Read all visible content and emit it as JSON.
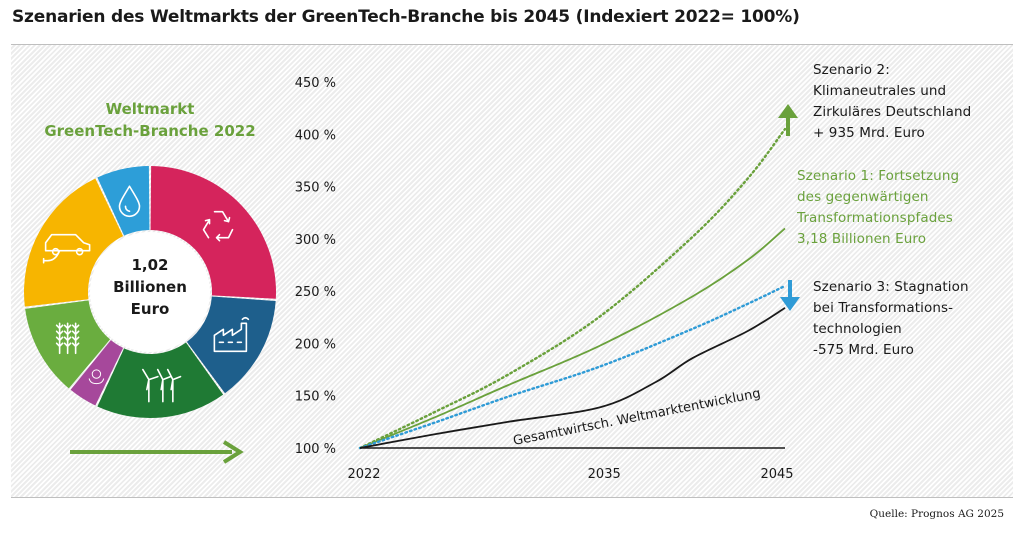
{
  "title": "Szenarien des Weltmarkts der GreenTech-Branche bis 2045 (Indexiert 2022= 100%)",
  "source": "Quelle: Prognos AG 2025",
  "colors": {
    "green": "#6aa13c",
    "blue": "#2f9bd6",
    "black": "#1a1a1a"
  },
  "donut": {
    "title_lines": [
      "Weltmarkt",
      "GreenTech-Branche 2022"
    ],
    "center_lines": [
      "1,02",
      "Billionen",
      "Euro"
    ],
    "segments": [
      {
        "icon": "recycling-icon",
        "value": 0.26,
        "color": "#d5245c"
      },
      {
        "icon": "factory-icon",
        "value": 0.14,
        "color": "#1e5f8c"
      },
      {
        "icon": "wind-turbine-icon",
        "value": 0.17,
        "color": "#1f7a34"
      },
      {
        "icon": "globe-hands-icon",
        "value": 0.04,
        "color": "#a6489b"
      },
      {
        "icon": "wheat-icon",
        "value": 0.12,
        "color": "#6aad3f"
      },
      {
        "icon": "electric-car-icon",
        "value": 0.2,
        "color": "#f7b500"
      },
      {
        "icon": "water-drop-icon",
        "value": 0.07,
        "color": "#2d9ed8"
      }
    ]
  },
  "scenarios": {
    "s2": [
      "Szenario 2:",
      "Klimaneutrales und",
      "Zirkuläres Deutschland",
      "+ 935 Mrd. Euro"
    ],
    "s1": [
      "Szenario 1: Fortsetzung",
      "des gegenwärtigen",
      "Transformationspfades",
      "3,18 Billionen Euro"
    ],
    "s3": [
      "Szenario 3: Stagnation",
      "bei Transformations-",
      "technologien",
      "-575 Mrd. Euro"
    ]
  },
  "chart_data": {
    "type": "line",
    "x_ticks": [
      "2022",
      "2035",
      "2045"
    ],
    "y_ticks": [
      "100 %",
      "150 %",
      "200 %",
      "250 %",
      "300 %",
      "350 %",
      "400 %",
      "450 %"
    ],
    "ylim": [
      100,
      450
    ],
    "xlim": [
      2022,
      2045
    ],
    "curve_label": "Gesamtwirtsch. Weltmarktentwicklung",
    "series": [
      {
        "key": "s2",
        "style": "dotted",
        "color": "#6aa13c",
        "points": [
          [
            2022,
            100
          ],
          [
            2026,
            134
          ],
          [
            2030,
            170
          ],
          [
            2035,
            226
          ],
          [
            2040,
            302
          ],
          [
            2043,
            358
          ],
          [
            2045,
            405
          ]
        ]
      },
      {
        "key": "s1",
        "style": "solid",
        "color": "#6aa13c",
        "points": [
          [
            2022,
            100
          ],
          [
            2026,
            129
          ],
          [
            2030,
            160
          ],
          [
            2035,
            198
          ],
          [
            2040,
            245
          ],
          [
            2043,
            280
          ],
          [
            2045,
            310
          ]
        ]
      },
      {
        "key": "s3",
        "style": "dotted",
        "color": "#2f9bd6",
        "points": [
          [
            2022,
            100
          ],
          [
            2026,
            124
          ],
          [
            2030,
            149
          ],
          [
            2035,
            178
          ],
          [
            2040,
            214
          ],
          [
            2043,
            238
          ],
          [
            2045,
            255
          ]
        ]
      },
      {
        "key": "gesamt",
        "style": "solid",
        "color": "#1a1a1a",
        "points": [
          [
            2022,
            100
          ],
          [
            2026,
            113
          ],
          [
            2030,
            125
          ],
          [
            2035,
            139
          ],
          [
            2038,
            163
          ],
          [
            2040,
            186
          ],
          [
            2043,
            212
          ],
          [
            2045,
            234
          ]
        ]
      },
      {
        "key": "baseline",
        "style": "solid",
        "color": "#1a1a1a",
        "points": [
          [
            2022,
            100
          ],
          [
            2045,
            100
          ]
        ]
      }
    ]
  }
}
